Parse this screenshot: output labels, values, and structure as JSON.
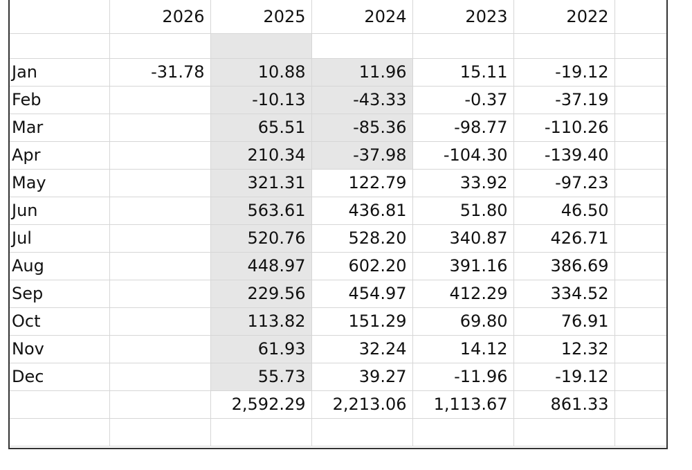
{
  "years": [
    "2026",
    "2025",
    "2024",
    "2023",
    "2022"
  ],
  "rows": [
    {
      "month": "Jan",
      "values": [
        "-31.78",
        "10.88",
        "11.96",
        "15.11",
        "-19.12"
      ]
    },
    {
      "month": "Feb",
      "values": [
        "",
        "-10.13",
        "-43.33",
        "-0.37",
        "-37.19"
      ]
    },
    {
      "month": "Mar",
      "values": [
        "",
        "65.51",
        "-85.36",
        "-98.77",
        "-110.26"
      ]
    },
    {
      "month": "Apr",
      "values": [
        "",
        "210.34",
        "-37.98",
        "-104.30",
        "-139.40"
      ]
    },
    {
      "month": "May",
      "values": [
        "",
        "321.31",
        "122.79",
        "33.92",
        "-97.23"
      ]
    },
    {
      "month": "Jun",
      "values": [
        "",
        "563.61",
        "436.81",
        "51.80",
        "46.50"
      ]
    },
    {
      "month": "Jul",
      "values": [
        "",
        "520.76",
        "528.20",
        "340.87",
        "426.71"
      ]
    },
    {
      "month": "Aug",
      "values": [
        "",
        "448.97",
        "602.20",
        "391.16",
        "386.69"
      ]
    },
    {
      "month": "Sep",
      "values": [
        "",
        "229.56",
        "454.97",
        "412.29",
        "334.52"
      ]
    },
    {
      "month": "Oct",
      "values": [
        "",
        "113.82",
        "151.29",
        "69.80",
        "76.91"
      ]
    },
    {
      "month": "Nov",
      "values": [
        "",
        "61.93",
        "32.24",
        "14.12",
        "12.32"
      ]
    },
    {
      "month": "Dec",
      "values": [
        "",
        "55.73",
        "39.27",
        "-11.96",
        "-19.12"
      ]
    }
  ],
  "totals": [
    "",
    "2,592.29",
    "2,213.06",
    "1,113.67",
    "861.33"
  ],
  "colors": {
    "shaded_cell": "#e6e6e6",
    "gridline": "#d6d6d6",
    "border": "#333333"
  }
}
